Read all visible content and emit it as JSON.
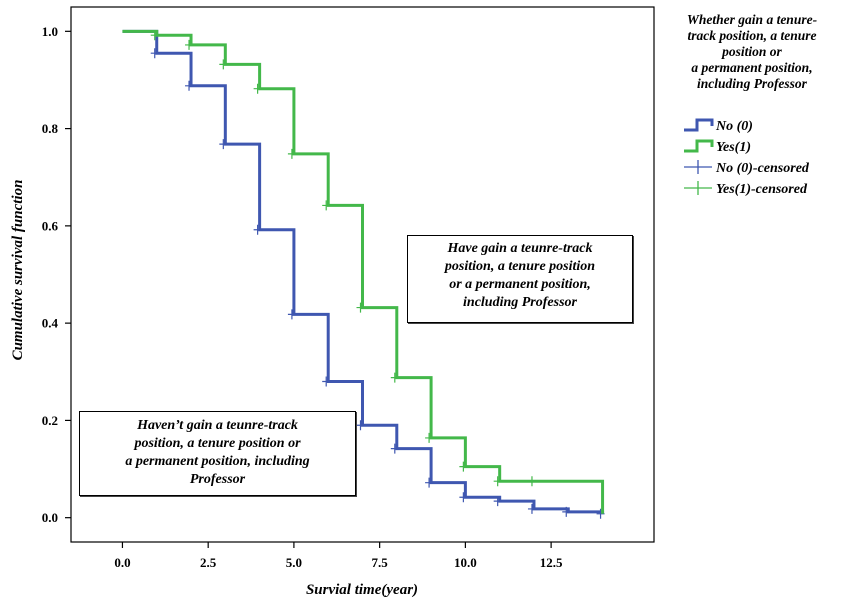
{
  "chart_data": {
    "type": "line",
    "subtype": "kaplan-meier-step",
    "xlabel": "Survial time(year)",
    "ylabel": "Cumulative survival function",
    "xlim": [
      -1.5,
      15.5
    ],
    "ylim": [
      -0.05,
      1.05
    ],
    "xticks": [
      0,
      2.5,
      5,
      7.5,
      10,
      12.5
    ],
    "xtick_labels": [
      "0.0",
      "2.5",
      "5.0",
      "7.5",
      "10.0",
      "12.5"
    ],
    "yticks": [
      0,
      0.2,
      0.4,
      0.6,
      0.8,
      1.0
    ],
    "ytick_labels": [
      "0.0",
      "0.2",
      "0.4",
      "0.6",
      "0.8",
      "1.0"
    ],
    "grid": false,
    "legend_position": "right-outside",
    "legend_title": [
      "Whether gain a tenure-",
      "track position, a tenure",
      "position or",
      "a permanent position,",
      "including Professor"
    ],
    "legend_entries": [
      {
        "label": "No (0)",
        "color": "#3f57b0",
        "marker": "step"
      },
      {
        "label": "Yes(1)",
        "color": "#43b84a",
        "marker": "step"
      },
      {
        "label": "No (0)-censored",
        "color": "#3f57b0",
        "marker": "plus"
      },
      {
        "label": "Yes(1)-censored",
        "color": "#43b84a",
        "marker": "plus"
      }
    ],
    "series": [
      {
        "name": "No (0)",
        "color": "#3f57b0",
        "x": [
          0,
          1,
          2,
          3,
          4,
          5,
          6,
          7,
          8,
          9,
          10,
          11,
          12,
          13,
          14
        ],
        "y": [
          1.0,
          0.955,
          0.888,
          0.768,
          0.592,
          0.418,
          0.28,
          0.19,
          0.142,
          0.072,
          0.042,
          0.034,
          0.018,
          0.012,
          0.008
        ],
        "censored_x": [
          1,
          2,
          3,
          4,
          5,
          6,
          7,
          8,
          9,
          10,
          11,
          12,
          13,
          14
        ]
      },
      {
        "name": "Yes(1)",
        "color": "#43b84a",
        "x": [
          0,
          1,
          2,
          3,
          4,
          5,
          6,
          7,
          8,
          9,
          10,
          11,
          12,
          14
        ],
        "y": [
          1.0,
          0.992,
          0.972,
          0.932,
          0.882,
          0.748,
          0.642,
          0.432,
          0.288,
          0.164,
          0.105,
          0.075,
          0.075,
          0.008
        ],
        "censored_x": [
          1,
          2,
          3,
          4,
          5,
          6,
          7,
          8,
          9,
          10,
          11,
          12
        ]
      }
    ],
    "annotations": [
      {
        "text": "Have gain a teunre-track\nposition, a tenure position\nor a permanent position,\nincluding Professor"
      },
      {
        "text": "Haven’t gain a teunre-track\nposition, a tenure position or\na permanent position, including\nProfessor"
      }
    ]
  }
}
